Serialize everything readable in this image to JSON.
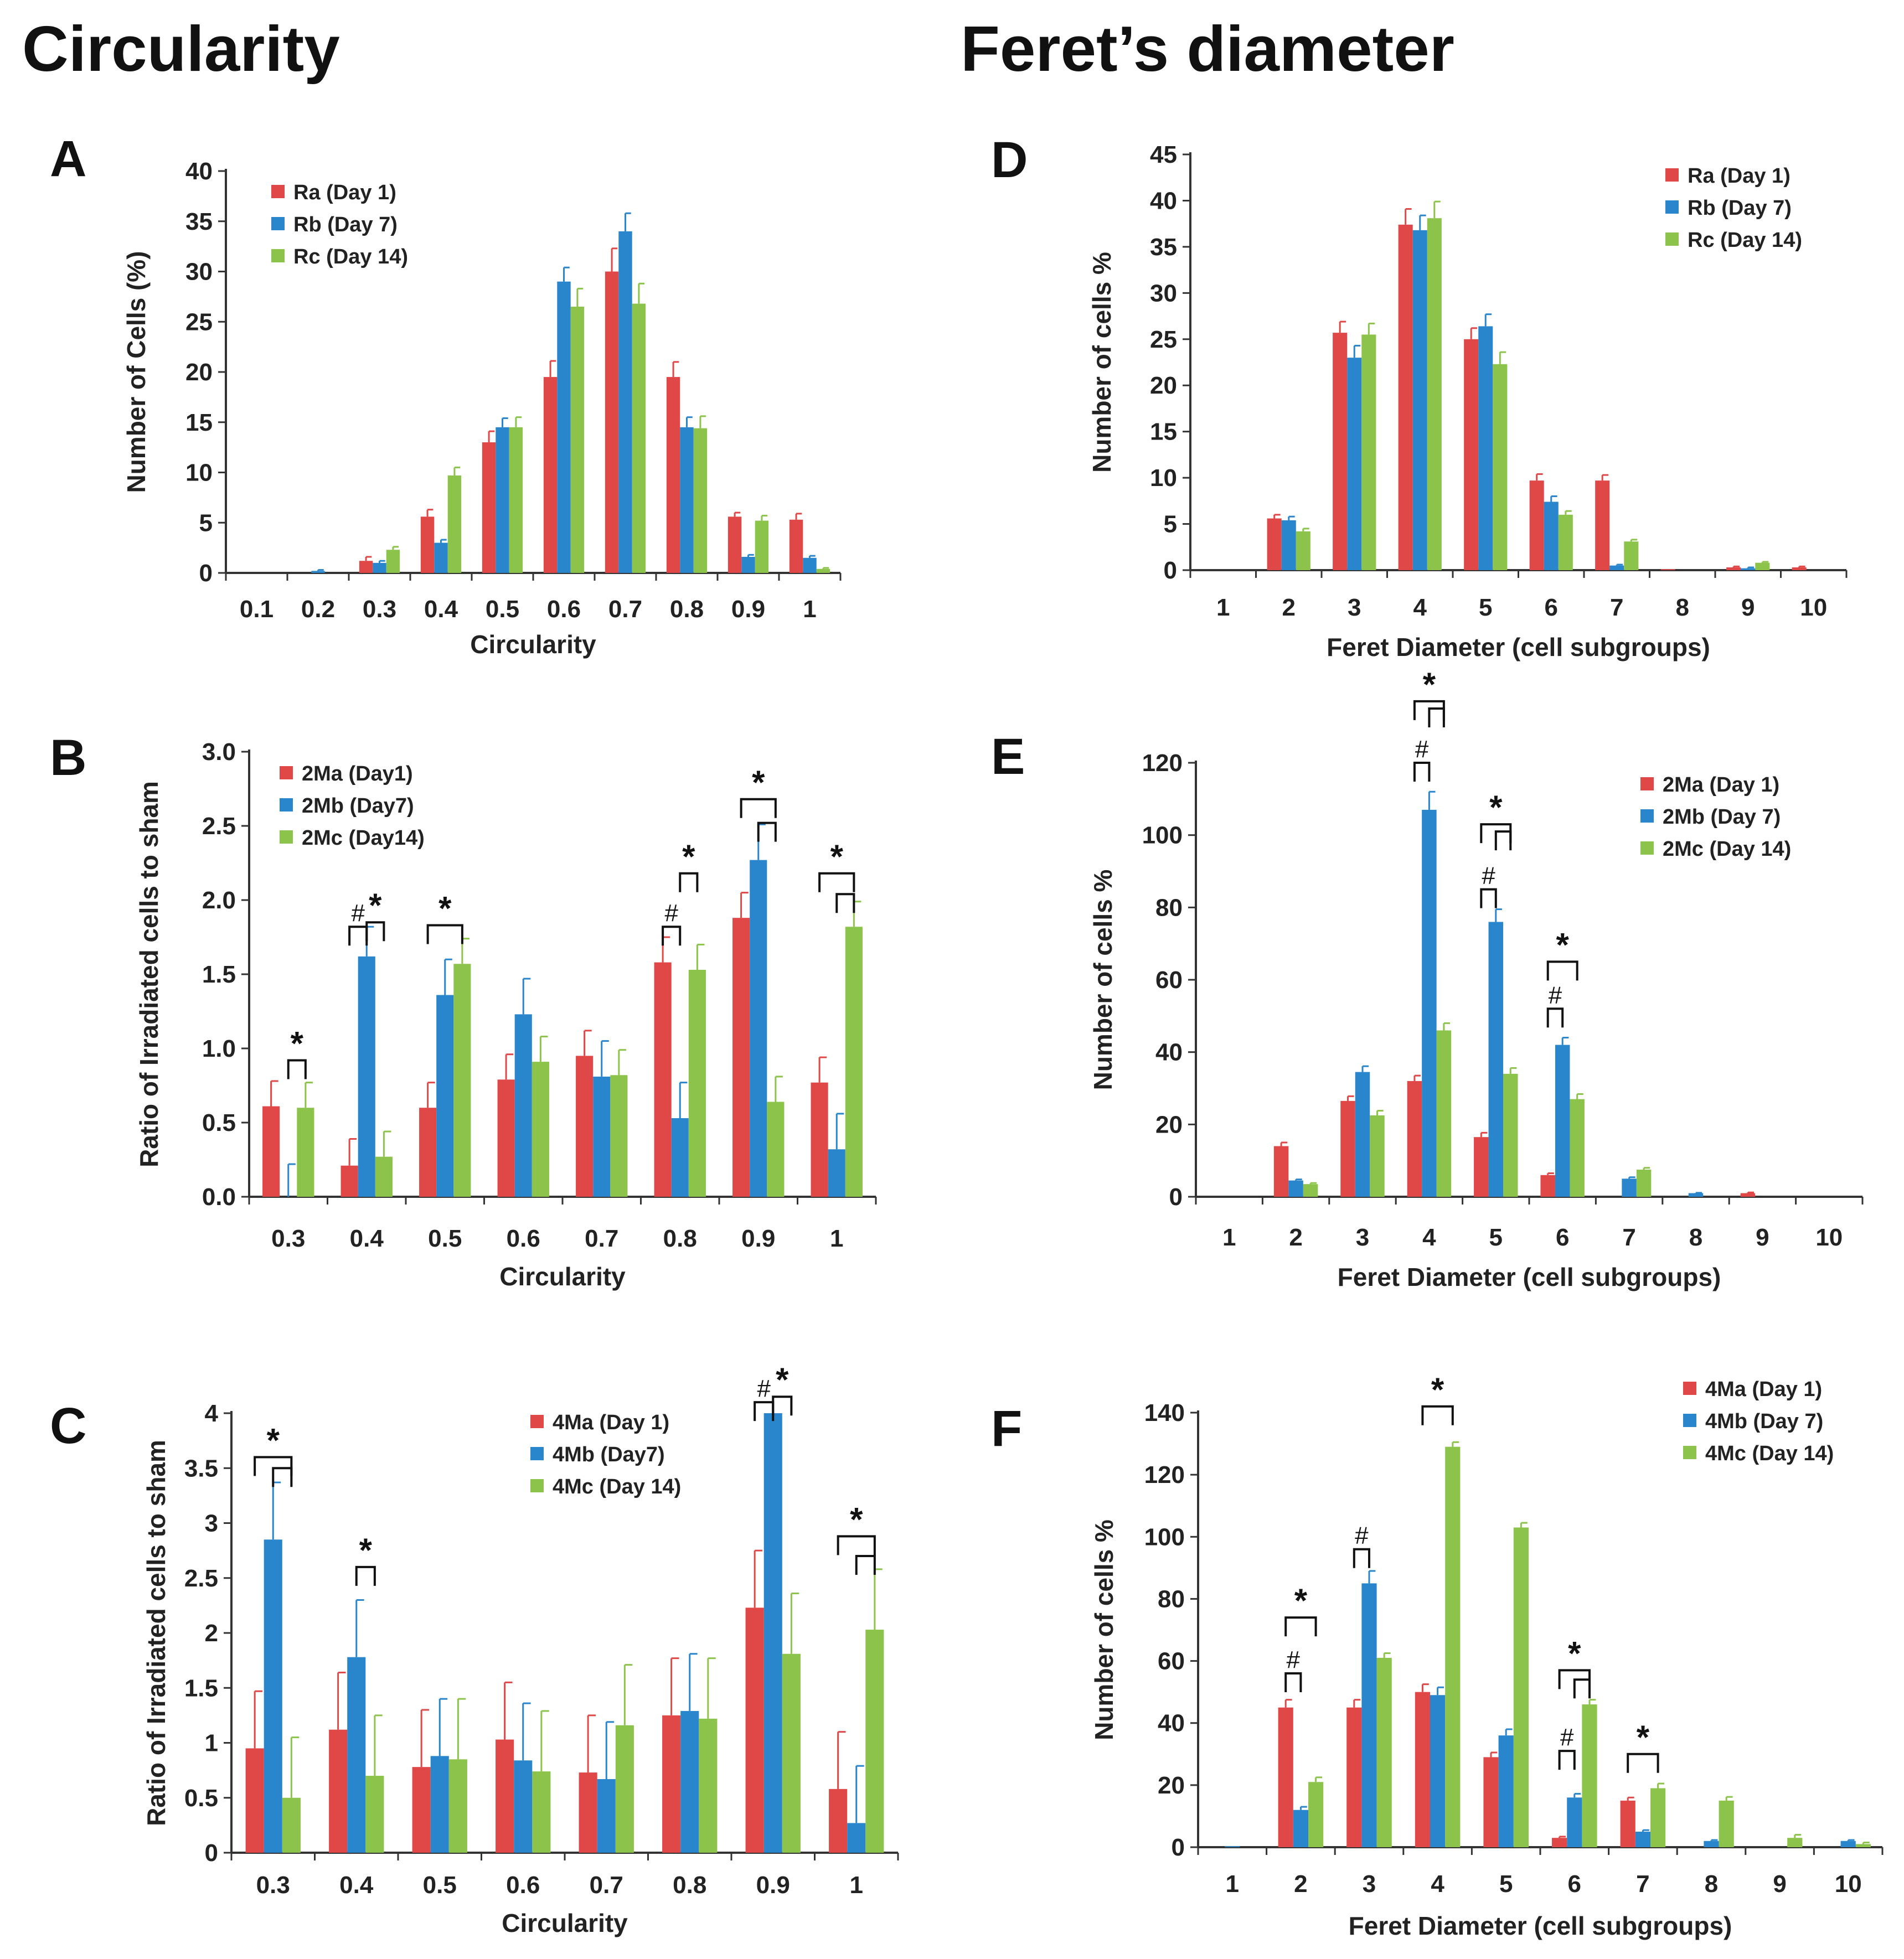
{
  "titles": {
    "circularity": "Circularity",
    "feret": "Feret’s diameter"
  },
  "colors": {
    "red": "#e04848",
    "blue": "#2a86cc",
    "green": "#8cc34a"
  },
  "chart_data": [
    {
      "letter": "A",
      "type": "bar",
      "title": "",
      "xlabel": "Circularity",
      "ylabel": "Number of Cells (%)",
      "ylim": [
        0,
        40
      ],
      "yticks": [
        0,
        5,
        10,
        15,
        20,
        25,
        30,
        35,
        40
      ],
      "categories": [
        "0.1",
        "0.2",
        "0.3",
        "0.4",
        "0.5",
        "0.6",
        "0.7",
        "0.8",
        "0.9",
        "1"
      ],
      "series": [
        {
          "name": "Ra (Day 1)",
          "color": "red",
          "values": [
            0,
            0,
            1.2,
            5.6,
            13,
            19.5,
            30,
            19.5,
            5.6,
            5.3
          ],
          "errors": [
            0,
            0,
            0.4,
            0.7,
            1.1,
            1.6,
            2.3,
            1.5,
            0.4,
            0.6
          ]
        },
        {
          "name": "Rb (Day 7)",
          "color": "blue",
          "values": [
            0,
            0.2,
            1,
            3,
            14.5,
            29,
            34,
            14.5,
            1.6,
            1.5
          ],
          "errors": [
            0,
            0.1,
            0.2,
            0.3,
            0.9,
            1.4,
            1.8,
            1.0,
            0.2,
            0.2
          ]
        },
        {
          "name": "Rc (Day 14)",
          "color": "green",
          "values": [
            0,
            0,
            2.3,
            9.7,
            14.5,
            26.5,
            26.8,
            14.4,
            5.2,
            0.4
          ],
          "errors": [
            0,
            0,
            0.3,
            0.8,
            1.0,
            1.8,
            2.0,
            1.2,
            0.5,
            0.1
          ]
        }
      ],
      "annotations": []
    },
    {
      "letter": "B",
      "type": "bar",
      "title": "",
      "xlabel": "Circularity",
      "ylabel": "Ratio of Irradiated cells to sham",
      "ylim": [
        0,
        3.0
      ],
      "yticks": [
        "0.0",
        "0.5",
        "1.0",
        "1.5",
        "2.0",
        "2.5",
        "3.0"
      ],
      "categories": [
        "0.3",
        "0.4",
        "0.5",
        "0.6",
        "0.7",
        "0.8",
        "0.9",
        "1"
      ],
      "series": [
        {
          "name": "2Ma (Day1)",
          "color": "red",
          "values": [
            0.61,
            0.21,
            0.6,
            0.79,
            0.95,
            1.58,
            1.88,
            0.77
          ],
          "errors": [
            0.17,
            0.18,
            0.17,
            0.17,
            0.17,
            0.17,
            0.17,
            0.17
          ]
        },
        {
          "name": "2Mb (Day7)",
          "color": "blue",
          "values": [
            0,
            1.62,
            1.36,
            1.23,
            0.81,
            0.53,
            2.27,
            0.32
          ],
          "errors": [
            0.22,
            0.2,
            0.24,
            0.24,
            0.24,
            0.24,
            0.24,
            0.24
          ]
        },
        {
          "name": "2Mc (Day14)",
          "color": "green",
          "values": [
            0.6,
            0.27,
            1.57,
            0.91,
            0.82,
            1.53,
            0.64,
            1.82
          ],
          "errors": [
            0.17,
            0.17,
            0.17,
            0.17,
            0.17,
            0.17,
            0.17,
            0.17
          ]
        }
      ],
      "annotations": [
        {
          "cat": 0,
          "from": 1,
          "to": 2,
          "y": 0.92,
          "label": "*"
        },
        {
          "cat": 1,
          "from": 0,
          "to": 1,
          "y": 1.82,
          "label": "#"
        },
        {
          "cat": 1,
          "from": 1,
          "to": 2,
          "y": 1.85,
          "label": "*"
        },
        {
          "cat": 2,
          "from": 0,
          "to": 2,
          "y": 1.83,
          "label": "*"
        },
        {
          "cat": 5,
          "from": 0,
          "to": 1,
          "y": 1.82,
          "label": "#"
        },
        {
          "cat": 5,
          "from": 1,
          "to": 2,
          "y": 2.18,
          "label": "*"
        },
        {
          "cat": 6,
          "from": 1,
          "to": 2,
          "y": 2.52,
          "label": ""
        },
        {
          "cat": 6,
          "from": 0,
          "to": 2,
          "y": 2.68,
          "label": "*"
        },
        {
          "cat": 7,
          "from": 1,
          "to": 2,
          "y": 2.04,
          "label": ""
        },
        {
          "cat": 7,
          "from": 0,
          "to": 2,
          "y": 2.18,
          "label": "*"
        }
      ]
    },
    {
      "letter": "C",
      "type": "bar",
      "title": "",
      "xlabel": "Circularity",
      "ylabel": "Ratio of Irradiated cells to sham",
      "ylim": [
        0,
        4
      ],
      "yticks": [
        0,
        0.5,
        1,
        1.5,
        2,
        2.5,
        3,
        3.5,
        4
      ],
      "categories": [
        "0.3",
        "0.4",
        "0.5",
        "0.6",
        "0.7",
        "0.8",
        "0.9",
        "1"
      ],
      "series": [
        {
          "name": "4Ma (Day 1)",
          "color": "red",
          "values": [
            0.95,
            1.12,
            0.78,
            1.03,
            0.73,
            1.25,
            2.23,
            0.58
          ],
          "errors": [
            0.52,
            0.52,
            0.52,
            0.52,
            0.52,
            0.52,
            0.52,
            0.52
          ]
        },
        {
          "name": "4Mb (Day7)",
          "color": "blue",
          "values": [
            2.85,
            1.78,
            0.88,
            0.84,
            0.67,
            1.29,
            4.0,
            0.27
          ],
          "errors": [
            0.52,
            0.52,
            0.52,
            0.52,
            0.52,
            0.52,
            0,
            0.52
          ]
        },
        {
          "name": "4Mc (Day 14)",
          "color": "green",
          "values": [
            0.5,
            0.7,
            0.85,
            0.74,
            1.16,
            1.22,
            1.81,
            2.03
          ],
          "errors": [
            0.55,
            0.55,
            0.55,
            0.55,
            0.55,
            0.55,
            0.55,
            0.55
          ]
        }
      ],
      "annotations": [
        {
          "cat": 0,
          "from": 1,
          "to": 2,
          "y": 3.5,
          "label": ""
        },
        {
          "cat": 0,
          "from": 0,
          "to": 2,
          "y": 3.6,
          "label": "*"
        },
        {
          "cat": 1,
          "from": 1,
          "to": 2,
          "y": 2.6,
          "label": "*"
        },
        {
          "cat": 6,
          "from": 0,
          "to": 1,
          "y": 4.1,
          "label": "#"
        },
        {
          "cat": 6,
          "from": 1,
          "to": 2,
          "y": 4.15,
          "label": "*"
        },
        {
          "cat": 7,
          "from": 1,
          "to": 2,
          "y": 2.7,
          "label": ""
        },
        {
          "cat": 7,
          "from": 0,
          "to": 2,
          "y": 2.88,
          "label": "*"
        }
      ]
    },
    {
      "letter": "D",
      "type": "bar",
      "title": "",
      "xlabel": "Feret Diameter (cell subgroups)",
      "ylabel": "Number of cells %",
      "ylim": [
        0,
        45
      ],
      "yticks": [
        0,
        5,
        10,
        15,
        20,
        25,
        30,
        35,
        40,
        45
      ],
      "categories": [
        "1",
        "2",
        "3",
        "4",
        "5",
        "6",
        "7",
        "8",
        "9",
        "10"
      ],
      "series": [
        {
          "name": "Ra (Day 1)",
          "color": "red",
          "values": [
            0,
            5.6,
            25.7,
            37.4,
            25,
            9.7,
            9.7,
            0.1,
            0.3,
            0.3
          ],
          "errors": [
            0,
            0.4,
            1.2,
            1.7,
            1.2,
            0.7,
            0.6,
            0,
            0.1,
            0.1
          ]
        },
        {
          "name": "Rb (Day 7)",
          "color": "blue",
          "values": [
            0,
            5.4,
            23,
            36.8,
            26.4,
            7.4,
            0.5,
            0,
            0.2,
            0
          ],
          "errors": [
            0,
            0.4,
            1.3,
            1.6,
            1.3,
            0.6,
            0.1,
            0,
            0.1,
            0
          ]
        },
        {
          "name": "Rc (Day 14)",
          "color": "green",
          "values": [
            0,
            4.2,
            25.5,
            38.1,
            22.3,
            6,
            3.1,
            0,
            0.8,
            0
          ],
          "errors": [
            0,
            0.3,
            1.2,
            1.8,
            1.3,
            0.4,
            0.2,
            0,
            0.1,
            0
          ]
        }
      ],
      "annotations": []
    },
    {
      "letter": "E",
      "type": "bar",
      "title": "",
      "xlabel": "Feret Diameter (cell subgroups)",
      "ylabel": "Number of cells %",
      "ylim": [
        0,
        120
      ],
      "yticks": [
        0,
        20,
        40,
        60,
        80,
        100,
        120
      ],
      "categories": [
        "1",
        "2",
        "3",
        "4",
        "5",
        "6",
        "7",
        "8",
        "9",
        "10"
      ],
      "series": [
        {
          "name": "2Ma (Day 1)",
          "color": "red",
          "values": [
            0,
            14,
            26.5,
            32,
            16.5,
            6,
            0,
            0,
            1,
            0
          ],
          "errors": [
            0,
            1,
            1.3,
            1.5,
            1.2,
            0.5,
            0,
            0,
            0.2,
            0
          ]
        },
        {
          "name": "2Mb (Day 7)",
          "color": "blue",
          "values": [
            0,
            4.5,
            34.5,
            107,
            76,
            42,
            5,
            1,
            0,
            0
          ],
          "errors": [
            0,
            0.3,
            1.6,
            5,
            3.5,
            2,
            0.4,
            0.1,
            0,
            0
          ]
        },
        {
          "name": "2Mc (Day 14)",
          "color": "green",
          "values": [
            0,
            3.5,
            22.5,
            46,
            34,
            27,
            7.5,
            0,
            0,
            0
          ],
          "errors": [
            0,
            0.3,
            1.3,
            2,
            1.6,
            1.4,
            0.5,
            0,
            0,
            0
          ]
        }
      ],
      "annotations": [
        {
          "cat": 3,
          "from": 0,
          "to": 1,
          "y": 120,
          "label": "#"
        },
        {
          "cat": 3,
          "from": 1,
          "to": 2,
          "y": 135,
          "label": ""
        },
        {
          "cat": 3,
          "from": 0,
          "to": 2,
          "y": 137,
          "label": "*"
        },
        {
          "cat": 4,
          "from": 0,
          "to": 1,
          "y": 85,
          "label": "#"
        },
        {
          "cat": 4,
          "from": 1,
          "to": 2,
          "y": 101,
          "label": ""
        },
        {
          "cat": 4,
          "from": 0,
          "to": 2,
          "y": 103,
          "label": "*"
        },
        {
          "cat": 5,
          "from": 0,
          "to": 1,
          "y": 52,
          "label": "#"
        },
        {
          "cat": 5,
          "from": 0,
          "to": 2,
          "y": 65,
          "label": "*"
        }
      ]
    },
    {
      "letter": "F",
      "type": "bar",
      "title": "",
      "xlabel": "Feret Diameter (cell subgroups)",
      "ylabel": "Number of cells %",
      "ylim": [
        0,
        140
      ],
      "yticks": [
        0,
        20,
        40,
        60,
        80,
        100,
        120,
        140
      ],
      "categories": [
        "1",
        "2",
        "3",
        "4",
        "5",
        "6",
        "7",
        "8",
        "9",
        "10"
      ],
      "series": [
        {
          "name": "4Ma (Day 1)",
          "color": "red",
          "values": [
            0,
            45,
            45,
            50,
            29,
            3,
            15,
            0,
            0,
            0
          ],
          "errors": [
            0,
            2.5,
            2.5,
            2.5,
            1.5,
            0.4,
            1,
            0,
            0,
            0
          ]
        },
        {
          "name": "4Mb (Day 7)",
          "color": "blue",
          "values": [
            0.3,
            12,
            85,
            49,
            36,
            16,
            5,
            2,
            0,
            2
          ],
          "errors": [
            0,
            1,
            4,
            2.5,
            2,
            1.2,
            0.5,
            0.3,
            0,
            0.3
          ]
        },
        {
          "name": "4Mc (Day 14)",
          "color": "green",
          "values": [
            0,
            21,
            61,
            129,
            103,
            46,
            19,
            15,
            3,
            1
          ],
          "errors": [
            0,
            1.5,
            1.5,
            1.5,
            1.5,
            1.5,
            1.5,
            1.2,
            1,
            0.5
          ]
        }
      ],
      "annotations": [
        {
          "cat": 1,
          "from": 0,
          "to": 1,
          "y": 56,
          "label": "#"
        },
        {
          "cat": 1,
          "from": 0,
          "to": 2,
          "y": 74,
          "label": "*"
        },
        {
          "cat": 2,
          "from": 0,
          "to": 1,
          "y": 96,
          "label": "#"
        },
        {
          "cat": 3,
          "from": 0,
          "to": 2,
          "y": 142,
          "label": "*"
        },
        {
          "cat": 5,
          "from": 0,
          "to": 1,
          "y": 31,
          "label": "#"
        },
        {
          "cat": 5,
          "from": 1,
          "to": 2,
          "y": 54,
          "label": ""
        },
        {
          "cat": 5,
          "from": 0,
          "to": 2,
          "y": 57,
          "label": "*"
        },
        {
          "cat": 6,
          "from": 0,
          "to": 2,
          "y": 30,
          "label": "*"
        }
      ]
    }
  ]
}
